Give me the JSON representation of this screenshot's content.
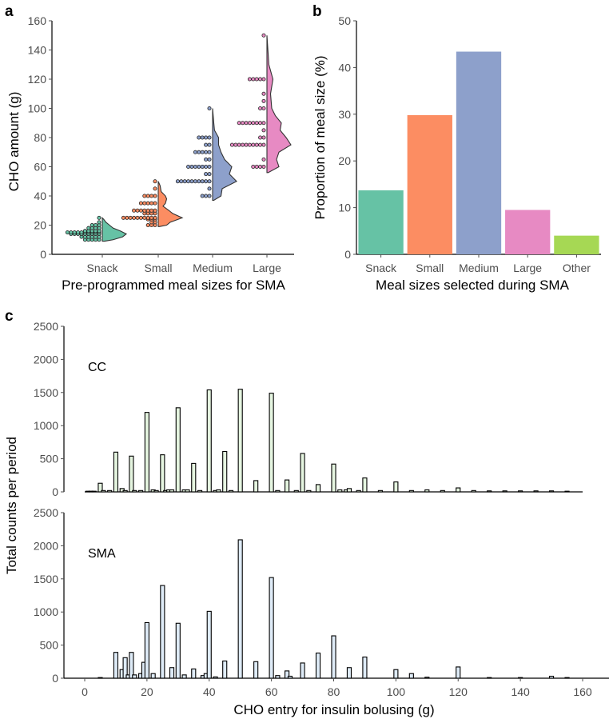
{
  "panels": {
    "a": "a",
    "b": "b",
    "c": "c"
  },
  "chart_data": [
    {
      "id": "a",
      "type": "violin-dotplot",
      "xlabel": "Pre-programmed meal sizes for SMA",
      "ylabel": "CHO amount (g)",
      "ylim": [
        0,
        160
      ],
      "yticks": [
        0,
        20,
        40,
        60,
        80,
        100,
        120,
        140,
        160
      ],
      "categories": [
        "Snack",
        "Small",
        "Medium",
        "Large"
      ],
      "colors": [
        "#66c2a5",
        "#fc8d62",
        "#8da0cb",
        "#e78ac3"
      ],
      "dots": [
        [
          {
            "v": 10,
            "n": 5
          },
          {
            "v": 12,
            "n": 6
          },
          {
            "v": 14,
            "n": 9
          },
          {
            "v": 15,
            "n": 10
          },
          {
            "v": 16,
            "n": 5
          },
          {
            "v": 18,
            "n": 4
          },
          {
            "v": 20,
            "n": 3
          },
          {
            "v": 22,
            "n": 1
          },
          {
            "v": 25,
            "n": 1
          }
        ],
        [
          {
            "v": 20,
            "n": 3
          },
          {
            "v": 22,
            "n": 2
          },
          {
            "v": 24,
            "n": 3
          },
          {
            "v": 25,
            "n": 10
          },
          {
            "v": 28,
            "n": 4
          },
          {
            "v": 30,
            "n": 7
          },
          {
            "v": 35,
            "n": 5
          },
          {
            "v": 40,
            "n": 4
          },
          {
            "v": 45,
            "n": 1
          },
          {
            "v": 50,
            "n": 1
          }
        ],
        [
          {
            "v": 40,
            "n": 3
          },
          {
            "v": 45,
            "n": 1
          },
          {
            "v": 50,
            "n": 10
          },
          {
            "v": 55,
            "n": 2
          },
          {
            "v": 60,
            "n": 7
          },
          {
            "v": 65,
            "n": 2
          },
          {
            "v": 70,
            "n": 5
          },
          {
            "v": 75,
            "n": 2
          },
          {
            "v": 80,
            "n": 4
          },
          {
            "v": 100,
            "n": 1
          }
        ],
        [
          {
            "v": 60,
            "n": 4
          },
          {
            "v": 65,
            "n": 1
          },
          {
            "v": 75,
            "n": 10
          },
          {
            "v": 80,
            "n": 2
          },
          {
            "v": 85,
            "n": 1
          },
          {
            "v": 90,
            "n": 8
          },
          {
            "v": 100,
            "n": 2
          },
          {
            "v": 105,
            "n": 1
          },
          {
            "v": 110,
            "n": 1
          },
          {
            "v": 120,
            "n": 5
          },
          {
            "v": 150,
            "n": 1
          }
        ]
      ],
      "density": [
        [
          [
            9,
            0.1
          ],
          [
            10,
            0.45
          ],
          [
            12,
            0.85
          ],
          [
            14,
            1.0
          ],
          [
            16,
            0.75
          ],
          [
            18,
            0.45
          ],
          [
            20,
            0.3
          ],
          [
            22,
            0.15
          ],
          [
            24,
            0.06
          ],
          [
            25,
            0
          ]
        ],
        [
          [
            19,
            0.05
          ],
          [
            20,
            0.35
          ],
          [
            22,
            0.5
          ],
          [
            25,
            1.0
          ],
          [
            28,
            0.6
          ],
          [
            30,
            0.45
          ],
          [
            33,
            0.2
          ],
          [
            35,
            0.3
          ],
          [
            38,
            0.35
          ],
          [
            40,
            0.3
          ],
          [
            43,
            0.12
          ],
          [
            47,
            0.08
          ],
          [
            50,
            0
          ]
        ],
        [
          [
            37,
            0.05
          ],
          [
            40,
            0.35
          ],
          [
            45,
            0.4
          ],
          [
            50,
            1.0
          ],
          [
            55,
            0.7
          ],
          [
            60,
            0.8
          ],
          [
            65,
            0.5
          ],
          [
            70,
            0.35
          ],
          [
            75,
            0.25
          ],
          [
            80,
            0.25
          ],
          [
            85,
            0.08
          ],
          [
            90,
            0.05
          ],
          [
            100,
            0
          ]
        ],
        [
          [
            56,
            0.05
          ],
          [
            60,
            0.5
          ],
          [
            65,
            0.4
          ],
          [
            70,
            0.5
          ],
          [
            75,
            1.0
          ],
          [
            80,
            0.8
          ],
          [
            85,
            0.55
          ],
          [
            90,
            0.6
          ],
          [
            95,
            0.35
          ],
          [
            100,
            0.2
          ],
          [
            110,
            0.15
          ],
          [
            120,
            0.25
          ],
          [
            130,
            0.08
          ],
          [
            140,
            0.04
          ],
          [
            150,
            0
          ]
        ]
      ]
    },
    {
      "id": "b",
      "type": "bar",
      "xlabel": "Meal sizes selected during SMA",
      "ylabel": "Proportion of meal size (%)",
      "ylim": [
        0,
        50
      ],
      "yticks": [
        0,
        10,
        20,
        30,
        40,
        50
      ],
      "categories": [
        "Snack",
        "Small",
        "Medium",
        "Large",
        "Other"
      ],
      "values": [
        13.7,
        29.8,
        43.4,
        9.5,
        4.0
      ],
      "colors": [
        "#66c2a5",
        "#fc8d62",
        "#8da0cb",
        "#e78ac3",
        "#a6d854"
      ]
    },
    {
      "id": "c",
      "type": "histogram",
      "xlabel": "CHO entry for insulin bolusing (g)",
      "ylabel": "Total counts per period",
      "xlim": [
        0,
        160
      ],
      "xticks": [
        0,
        20,
        40,
        60,
        80,
        100,
        120,
        140,
        160
      ],
      "ylim": [
        0,
        2500
      ],
      "yticks": [
        0,
        500,
        1000,
        1500,
        2000,
        2500
      ],
      "series": [
        {
          "name": "CC",
          "color": "#e5f5e0",
          "bars": [
            [
              1,
              10
            ],
            [
              2,
              10
            ],
            [
              3,
              10
            ],
            [
              5,
              130
            ],
            [
              6,
              20
            ],
            [
              8,
              20
            ],
            [
              10,
              600
            ],
            [
              12,
              50
            ],
            [
              13,
              20
            ],
            [
              15,
              540
            ],
            [
              16,
              20
            ],
            [
              18,
              20
            ],
            [
              20,
              1200
            ],
            [
              22,
              30
            ],
            [
              23,
              20
            ],
            [
              25,
              560
            ],
            [
              26,
              20
            ],
            [
              27,
              30
            ],
            [
              28,
              30
            ],
            [
              30,
              1270
            ],
            [
              32,
              30
            ],
            [
              33,
              30
            ],
            [
              35,
              430
            ],
            [
              37,
              20
            ],
            [
              40,
              1540
            ],
            [
              42,
              20
            ],
            [
              43,
              30
            ],
            [
              45,
              610
            ],
            [
              47,
              20
            ],
            [
              50,
              1550
            ],
            [
              55,
              170
            ],
            [
              60,
              1490
            ],
            [
              62,
              20
            ],
            [
              65,
              180
            ],
            [
              68,
              20
            ],
            [
              70,
              580
            ],
            [
              72,
              20
            ],
            [
              75,
              110
            ],
            [
              80,
              420
            ],
            [
              82,
              30
            ],
            [
              84,
              30
            ],
            [
              85,
              50
            ],
            [
              88,
              20
            ],
            [
              90,
              210
            ],
            [
              95,
              20
            ],
            [
              100,
              150
            ],
            [
              105,
              20
            ],
            [
              110,
              30
            ],
            [
              115,
              20
            ],
            [
              120,
              60
            ],
            [
              125,
              20
            ],
            [
              130,
              15
            ],
            [
              135,
              15
            ],
            [
              140,
              15
            ],
            [
              145,
              15
            ],
            [
              150,
              15
            ],
            [
              155,
              10
            ]
          ]
        },
        {
          "name": "SMA",
          "color": "#deebf7",
          "bars": [
            [
              5,
              10
            ],
            [
              10,
              390
            ],
            [
              12,
              130
            ],
            [
              13,
              310
            ],
            [
              14,
              50
            ],
            [
              15,
              390
            ],
            [
              16,
              50
            ],
            [
              18,
              70
            ],
            [
              19,
              240
            ],
            [
              20,
              840
            ],
            [
              22,
              70
            ],
            [
              25,
              1400
            ],
            [
              28,
              160
            ],
            [
              30,
              830
            ],
            [
              32,
              50
            ],
            [
              35,
              140
            ],
            [
              38,
              40
            ],
            [
              39,
              70
            ],
            [
              40,
              1010
            ],
            [
              42,
              20
            ],
            [
              45,
              260
            ],
            [
              50,
              2090
            ],
            [
              55,
              250
            ],
            [
              60,
              1520
            ],
            [
              62,
              40
            ],
            [
              65,
              110
            ],
            [
              66,
              30
            ],
            [
              70,
              230
            ],
            [
              75,
              380
            ],
            [
              80,
              640
            ],
            [
              85,
              160
            ],
            [
              90,
              320
            ],
            [
              100,
              130
            ],
            [
              105,
              70
            ],
            [
              110,
              15
            ],
            [
              120,
              170
            ],
            [
              130,
              10
            ],
            [
              140,
              10
            ],
            [
              150,
              30
            ],
            [
              155,
              10
            ]
          ]
        }
      ]
    }
  ]
}
